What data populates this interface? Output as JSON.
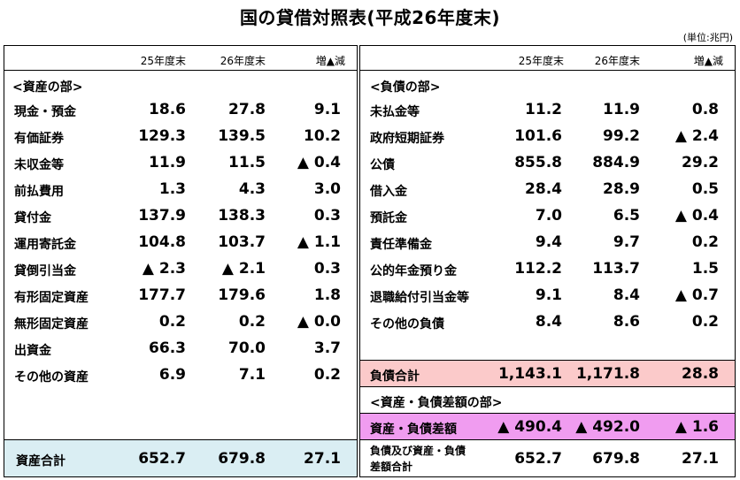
{
  "title": "国の貸借対照表(平成26年度末)",
  "unit": "(単位:兆円)",
  "headers": {
    "y25": "25年度末",
    "y26": "26年度末",
    "diff": "増▲減"
  },
  "assets": {
    "section": "<資産の部>",
    "rows": [
      {
        "label": "現金・預金",
        "y25": "18.6",
        "y26": "27.8",
        "diff": "9.1"
      },
      {
        "label": "有価証券",
        "y25": "129.3",
        "y26": "139.5",
        "diff": "10.2"
      },
      {
        "label": "未収金等",
        "y25": "11.9",
        "y26": "11.5",
        "diff": "▲ 0.4"
      },
      {
        "label": "前払費用",
        "y25": "1.3",
        "y26": "4.3",
        "diff": "3.0"
      },
      {
        "label": "貸付金",
        "y25": "137.9",
        "y26": "138.3",
        "diff": "0.3"
      },
      {
        "label": "運用寄託金",
        "y25": "104.8",
        "y26": "103.7",
        "diff": "▲ 1.1"
      },
      {
        "label": "貸倒引当金",
        "y25": "▲ 2.3",
        "y26": "▲ 2.1",
        "diff": "0.3"
      },
      {
        "label": "有形固定資産",
        "y25": "177.7",
        "y26": "179.6",
        "diff": "1.8"
      },
      {
        "label": "無形固定資産",
        "y25": "0.2",
        "y26": "0.2",
        "diff": "▲ 0.0"
      },
      {
        "label": "出資金",
        "y25": "66.3",
        "y26": "70.0",
        "diff": "3.7"
      },
      {
        "label": "その他の資産",
        "y25": "6.9",
        "y26": "7.1",
        "diff": "0.2"
      }
    ],
    "total": {
      "label": "資産合計",
      "y25": "652.7",
      "y26": "679.8",
      "diff": "27.1"
    }
  },
  "liabilities": {
    "section": "<負債の部>",
    "rows": [
      {
        "label": "未払金等",
        "y25": "11.2",
        "y26": "11.9",
        "diff": "0.8"
      },
      {
        "label": "政府短期証券",
        "y25": "101.6",
        "y26": "99.2",
        "diff": "▲ 2.4"
      },
      {
        "label": "公債",
        "y25": "855.8",
        "y26": "884.9",
        "diff": "29.2"
      },
      {
        "label": "借入金",
        "y25": "28.4",
        "y26": "28.9",
        "diff": "0.5"
      },
      {
        "label": "預託金",
        "y25": "7.0",
        "y26": "6.5",
        "diff": "▲ 0.4"
      },
      {
        "label": "責任準備金",
        "y25": "9.4",
        "y26": "9.7",
        "diff": "0.2"
      },
      {
        "label": "公的年金預り金",
        "y25": "112.2",
        "y26": "113.7",
        "diff": "1.5"
      },
      {
        "label": "退職給付引当金等",
        "y25": "9.1",
        "y26": "8.4",
        "diff": "▲ 0.7"
      },
      {
        "label": "その他の負債",
        "y25": "8.4",
        "y26": "8.6",
        "diff": "0.2"
      }
    ],
    "total": {
      "label": "負債合計",
      "y25": "1,143.1",
      "y26": "1,171.8",
      "diff": "28.8"
    }
  },
  "net": {
    "section": "<資産・負債差額の部>",
    "row": {
      "label": "資産・負債差額",
      "y25": "▲ 490.4",
      "y26": "▲ 492.0",
      "diff": "▲ 1.6"
    }
  },
  "grand_total": {
    "label_line1": "負債及び資産・負債",
    "label_line2": "差額合計",
    "y25": "652.7",
    "y26": "679.8",
    "diff": "27.1"
  },
  "colors": {
    "asset_total_bg": "#daeef3",
    "liab_total_bg": "#fbcaca",
    "net_bg": "#f09cf0"
  }
}
